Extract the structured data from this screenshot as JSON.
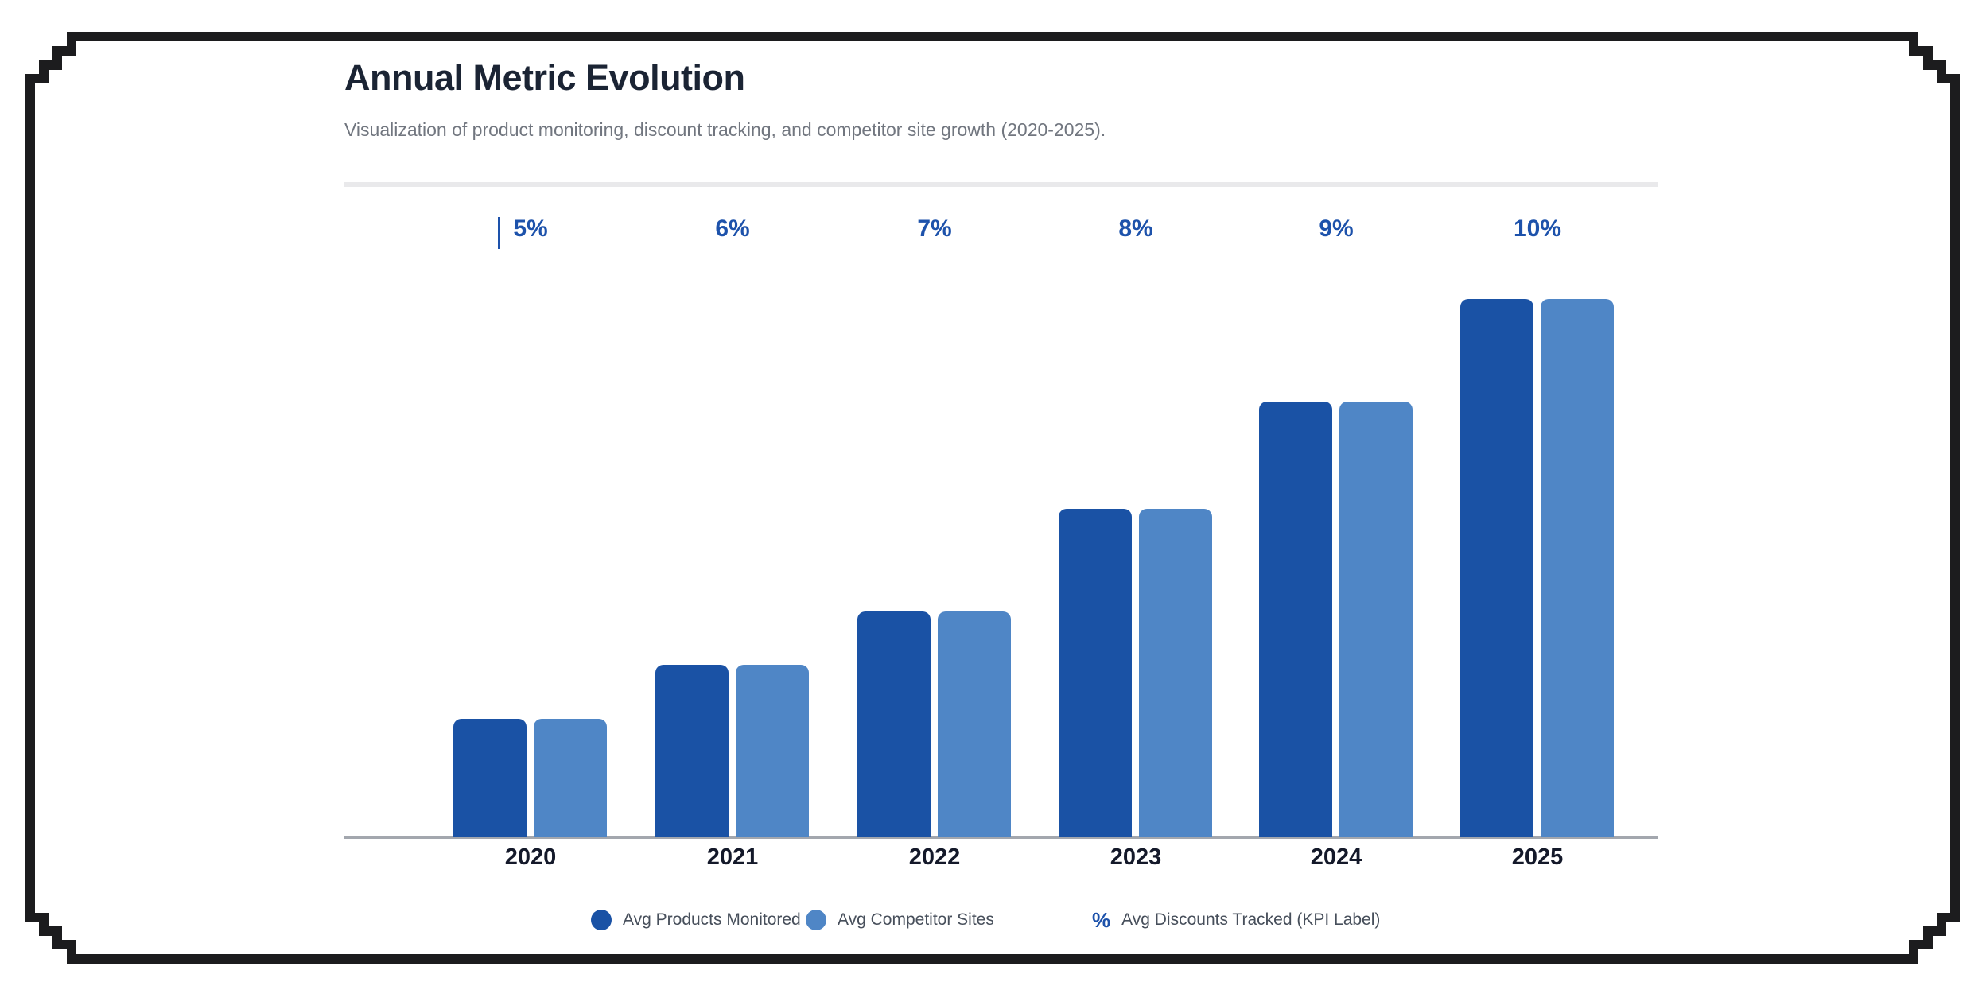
{
  "header": {
    "title": "Annual Metric Evolution",
    "subtitle": "Visualization of product monitoring, discount tracking, and competitor site growth (2020-2025)."
  },
  "colors": {
    "series_products": "#1a52a5",
    "series_competitors": "#4f86c6",
    "kpi_text": "#1d52ab",
    "title_text": "#1b2434",
    "subtitle_text": "#71767f",
    "x_label_text": "#14192a",
    "legend_text": "#474f5b",
    "axis_line": "#a3a7ae",
    "divider": "#e9e9eb",
    "frame": "#1c1c1e",
    "background": "#ffffff"
  },
  "chart_data": {
    "type": "bar",
    "title": "Annual Metric Evolution",
    "subtitle": "Visualization of product monitoring, discount tracking, and competitor site growth (2020-2025).",
    "categories": [
      "2020",
      "2021",
      "2022",
      "2023",
      "2024",
      "2025"
    ],
    "series": [
      {
        "name": "Avg Products Monitored",
        "color": "#1a52a5",
        "relative_heights_pct_of_max": [
          22,
          32,
          42,
          61,
          81,
          100
        ]
      },
      {
        "name": "Avg Competitor Sites",
        "color": "#4f86c6",
        "relative_heights_pct_of_max": [
          22,
          32,
          42,
          61,
          81,
          100
        ]
      }
    ],
    "kpi_series": {
      "name": "Avg Discounts Tracked (KPI Label)",
      "unit": "%",
      "values": [
        5,
        6,
        7,
        8,
        9,
        10
      ],
      "labels": [
        "5%",
        "6%",
        "7%",
        "8%",
        "9%",
        "10%"
      ]
    },
    "xlabel": "",
    "ylabel": "",
    "value_axis_labels_visible": false,
    "grid": false,
    "legend_position": "bottom"
  },
  "legend": {
    "items": [
      {
        "label": "Avg Products Monitored",
        "marker": "dot",
        "color": "#1a52a5"
      },
      {
        "label": "Avg Competitor Sites",
        "marker": "dot",
        "color": "#4f86c6"
      },
      {
        "label": "Avg Discounts Tracked (KPI Label)",
        "marker": "percent",
        "glyph": "%",
        "color": "#1d52ab"
      }
    ]
  }
}
